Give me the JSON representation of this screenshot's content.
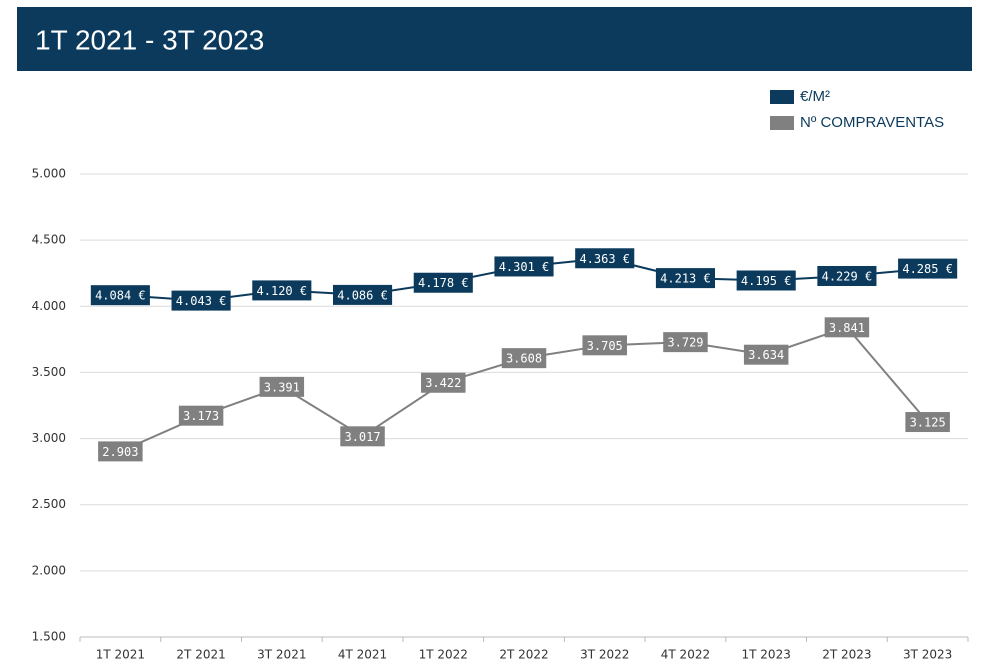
{
  "chart_data": {
    "type": "line",
    "title": "1T 2021 - 3T 2023",
    "categories": [
      "1T 2021",
      "2T 2021",
      "3T 2021",
      "4T 2021",
      "1T 2022",
      "2T 2022",
      "3T 2022",
      "4T 2022",
      "1T 2023",
      "2T 2023",
      "3T 2023"
    ],
    "series": [
      {
        "name": "€/M²",
        "color": "#0b3a5c",
        "values": [
          4084,
          4043,
          4120,
          4086,
          4178,
          4301,
          4363,
          4213,
          4195,
          4229,
          4285
        ],
        "value_labels": [
          "4.084 €",
          "4.043 €",
          "4.120 €",
          "4.086 €",
          "4.178 €",
          "4.301 €",
          "4.363 €",
          "4.213 €",
          "4.195 €",
          "4.229 €",
          "4.285 €"
        ]
      },
      {
        "name": "Nº COMPRAVENTAS",
        "color": "#808080",
        "values": [
          2903,
          3173,
          3391,
          3017,
          3422,
          3608,
          3705,
          3729,
          3634,
          3841,
          3125
        ],
        "value_labels": [
          "2.903",
          "3.173",
          "3.391",
          "3.017",
          "3.422",
          "3.608",
          "3.705",
          "3.729",
          "3.634",
          "3.841",
          "3.125"
        ]
      }
    ],
    "ylim": [
      1500,
      5000
    ],
    "yticks": [
      {
        "value": 1500,
        "label": "1.500"
      },
      {
        "value": 2000,
        "label": "2.000"
      },
      {
        "value": 2500,
        "label": "2.500"
      },
      {
        "value": 3000,
        "label": "3.000"
      },
      {
        "value": 3500,
        "label": "3.500"
      },
      {
        "value": 4000,
        "label": "4.000"
      },
      {
        "value": 4500,
        "label": "4.500"
      },
      {
        "value": 5000,
        "label": "5.000"
      }
    ],
    "grid": true,
    "legend": "top-right"
  }
}
